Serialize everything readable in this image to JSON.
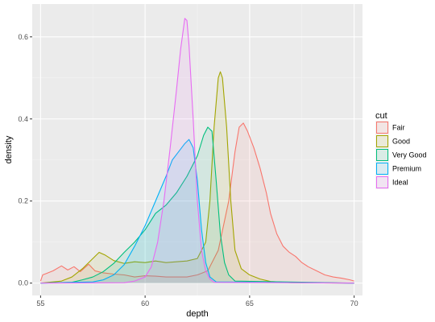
{
  "chart_data": {
    "type": "area",
    "title": "",
    "xlabel": "depth",
    "ylabel": "density",
    "xlim": [
      54.6,
      70.4
    ],
    "ylim": [
      -0.03,
      0.68
    ],
    "x_ticks": [
      55,
      60,
      65,
      70
    ],
    "y_ticks": [
      0.0,
      0.2,
      0.4,
      0.6
    ],
    "x_tick_labels": [
      "55",
      "60",
      "65",
      "70"
    ],
    "y_tick_labels": [
      "0.0",
      "0.2",
      "0.4",
      "0.6"
    ],
    "grid": true,
    "legend_position": "right",
    "legend_title": "cut",
    "series": [
      {
        "name": "Fair",
        "color": "#F8766D",
        "x": [
          55,
          55.1,
          55.3,
          55.6,
          56.0,
          56.3,
          56.6,
          56.9,
          57.3,
          57.6,
          58.0,
          58.5,
          59.0,
          59.5,
          60.0,
          60.5,
          61.0,
          61.5,
          62.0,
          62.5,
          63.0,
          63.5,
          64.0,
          64.3,
          64.5,
          64.7,
          64.9,
          65.2,
          65.5,
          65.8,
          66.0,
          66.3,
          66.6,
          66.9,
          67.2,
          67.5,
          67.8,
          68.2,
          68.6,
          69.0,
          69.4,
          69.8,
          70.0
        ],
        "y": [
          0.005,
          0.02,
          0.024,
          0.03,
          0.042,
          0.032,
          0.04,
          0.028,
          0.046,
          0.03,
          0.025,
          0.022,
          0.02,
          0.015,
          0.018,
          0.017,
          0.015,
          0.015,
          0.015,
          0.02,
          0.03,
          0.08,
          0.2,
          0.32,
          0.38,
          0.39,
          0.37,
          0.33,
          0.28,
          0.22,
          0.17,
          0.12,
          0.09,
          0.075,
          0.065,
          0.05,
          0.04,
          0.03,
          0.02,
          0.015,
          0.012,
          0.008,
          0.005
        ]
      },
      {
        "name": "Good",
        "color": "#A3A500",
        "x": [
          55,
          56.0,
          56.5,
          57.0,
          57.5,
          57.8,
          58.1,
          58.5,
          59.0,
          59.5,
          60.0,
          60.5,
          61.0,
          61.5,
          62.0,
          62.5,
          62.9,
          63.1,
          63.3,
          63.5,
          63.6,
          63.7,
          63.9,
          64.1,
          64.3,
          64.6,
          65.0,
          65.5,
          66.0,
          67.0,
          70.0
        ],
        "y": [
          0,
          0.005,
          0.015,
          0.035,
          0.06,
          0.075,
          0.068,
          0.055,
          0.048,
          0.052,
          0.05,
          0.054,
          0.05,
          0.052,
          0.054,
          0.06,
          0.1,
          0.2,
          0.38,
          0.5,
          0.515,
          0.5,
          0.38,
          0.2,
          0.08,
          0.035,
          0.02,
          0.01,
          0.004,
          0.001,
          0
        ]
      },
      {
        "name": "Very Good",
        "color": "#00BF7D",
        "x": [
          55,
          56.5,
          57.0,
          57.5,
          58.0,
          58.5,
          59.0,
          59.5,
          60.0,
          60.5,
          61.0,
          61.5,
          62.0,
          62.5,
          62.8,
          63.0,
          63.2,
          63.4,
          63.6,
          63.8,
          64.0,
          64.3,
          70.0
        ],
        "y": [
          0,
          0.002,
          0.008,
          0.015,
          0.028,
          0.048,
          0.075,
          0.1,
          0.13,
          0.17,
          0.19,
          0.22,
          0.26,
          0.31,
          0.36,
          0.38,
          0.37,
          0.25,
          0.12,
          0.05,
          0.02,
          0.005,
          0
        ]
      },
      {
        "name": "Premium",
        "color": "#00B0F6",
        "x": [
          55,
          57.5,
          58.0,
          58.5,
          59.0,
          59.5,
          60.0,
          60.5,
          61.0,
          61.3,
          61.6,
          61.9,
          62.1,
          62.3,
          62.5,
          62.7,
          62.9,
          63.1,
          63.4,
          70.0
        ],
        "y": [
          0,
          0.003,
          0.008,
          0.02,
          0.045,
          0.09,
          0.14,
          0.2,
          0.26,
          0.3,
          0.32,
          0.34,
          0.35,
          0.33,
          0.25,
          0.13,
          0.05,
          0.015,
          0.003,
          0
        ]
      },
      {
        "name": "Ideal",
        "color": "#E76BF3",
        "x": [
          55,
          59.0,
          59.5,
          60.0,
          60.3,
          60.6,
          60.9,
          61.2,
          61.5,
          61.7,
          61.9,
          62.0,
          62.1,
          62.3,
          62.5,
          62.7,
          62.9,
          63.1,
          63.3,
          70.0
        ],
        "y": [
          0,
          0.001,
          0.005,
          0.015,
          0.04,
          0.1,
          0.2,
          0.33,
          0.47,
          0.57,
          0.645,
          0.64,
          0.58,
          0.4,
          0.2,
          0.08,
          0.03,
          0.01,
          0.002,
          0
        ]
      }
    ]
  }
}
